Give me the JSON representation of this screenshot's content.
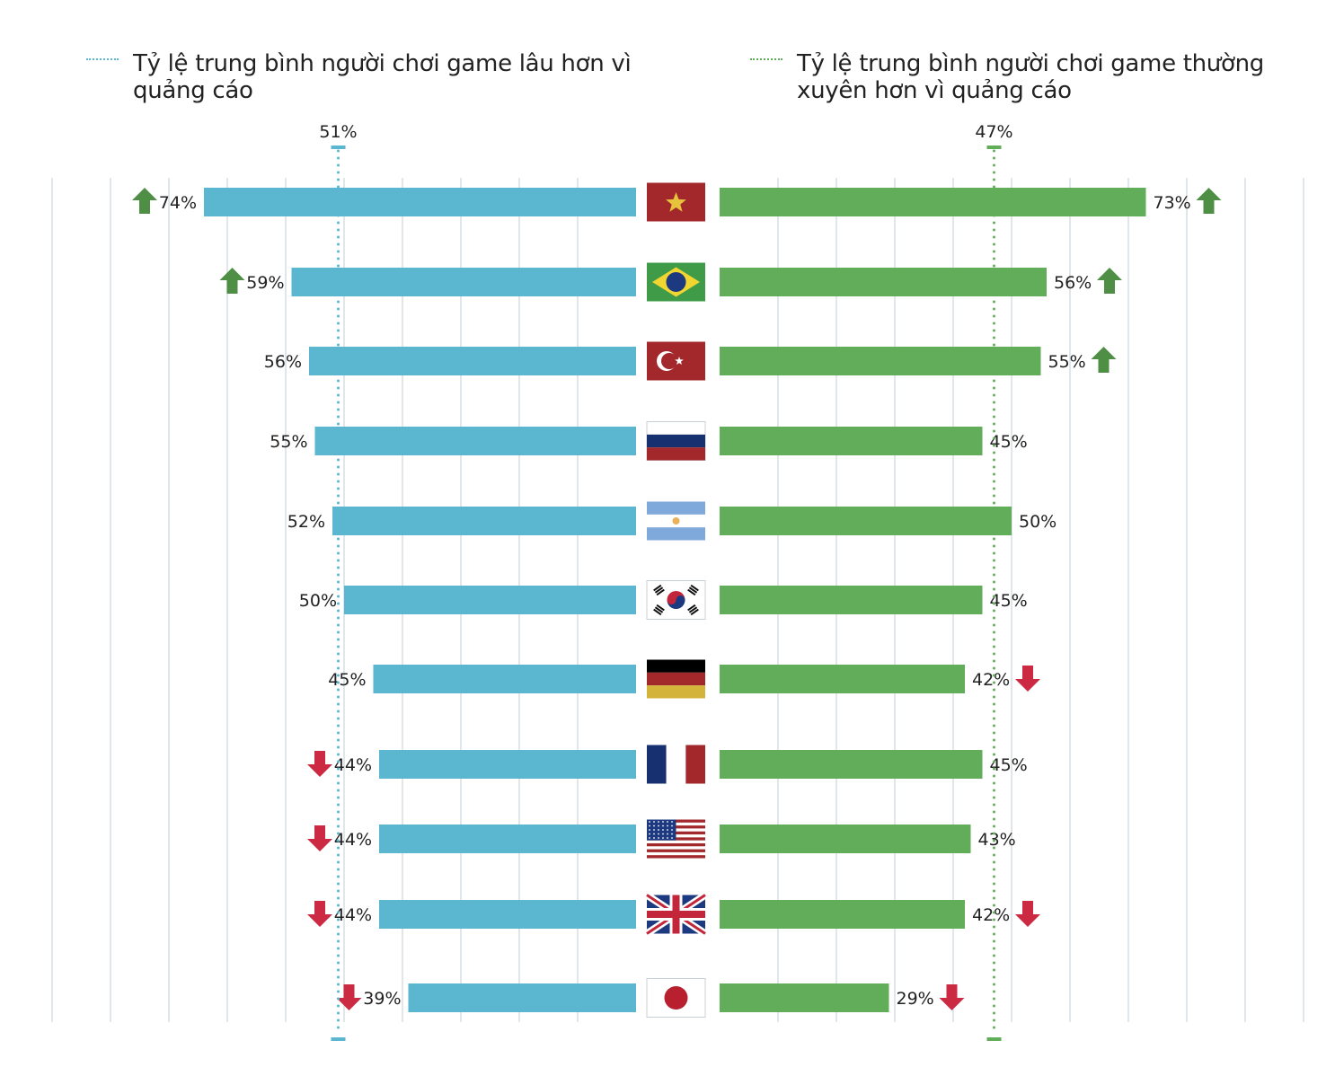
{
  "chart_data": {
    "type": "bar",
    "layout": "butterfly",
    "categories": [
      "Vietnam",
      "Brazil",
      "Turkey",
      "Russia",
      "Argentina",
      "South Korea",
      "Germany",
      "France",
      "United States",
      "United Kingdom",
      "Japan"
    ],
    "flags": [
      "vn",
      "br",
      "tr",
      "ru",
      "ar",
      "kr",
      "de",
      "fr",
      "us",
      "gb",
      "jp"
    ],
    "series": [
      {
        "name": "Tỷ lệ trung bình người chơi game lâu hơn vì quảng cáo",
        "side": "left",
        "color": "#5ab7cf",
        "values": [
          74,
          59,
          56,
          55,
          52,
          50,
          45,
          44,
          44,
          44,
          39
        ],
        "labels": [
          "74%",
          "59%",
          "56%",
          "55%",
          "52%",
          "50%",
          "45%",
          "44%",
          "44%",
          "44%",
          "39%"
        ],
        "trend": [
          "up",
          "up",
          "",
          "",
          "",
          "",
          "",
          "down",
          "down",
          "down",
          "down"
        ],
        "average": 51,
        "average_label": "51%"
      },
      {
        "name": "Tỷ lệ trung bình người chơi game thường xuyên hơn vì quảng cáo",
        "side": "right",
        "color": "#62ad5a",
        "values": [
          73,
          56,
          55,
          45,
          50,
          45,
          42,
          45,
          43,
          42,
          29
        ],
        "labels": [
          "73%",
          "56%",
          "55%",
          "45%",
          "50%",
          "45%",
          "42%",
          "45%",
          "43%",
          "42%",
          "29%"
        ],
        "trend": [
          "up",
          "up",
          "up",
          "",
          "",
          "",
          "down",
          "",
          "",
          "down",
          "down"
        ],
        "average": 47,
        "average_label": "47%"
      }
    ],
    "xlim": [
      0,
      100
    ],
    "grid_step": 10,
    "grid": true,
    "legend_position": "top",
    "colors": {
      "up_arrow": "#4e8f45",
      "down_arrow": "#cc2a43",
      "gridline": "#d5dde2"
    }
  },
  "legend": {
    "left": "Tỷ lệ trung bình người chơi game lâu hơn vì quảng cáo",
    "right": "Tỷ lệ trung bình người chơi game thường xuyên hơn vì quảng cáo"
  }
}
